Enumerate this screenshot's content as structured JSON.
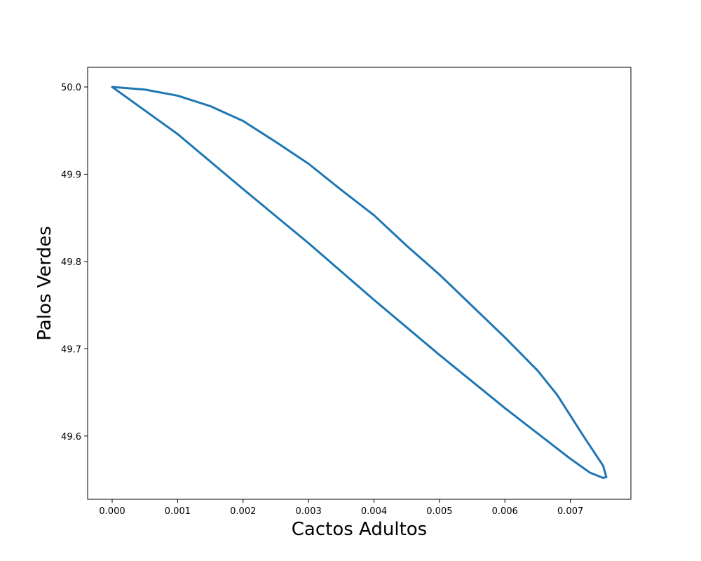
{
  "chart_data": {
    "type": "line",
    "title": "",
    "xlabel": "Cactos Adultos",
    "ylabel": "Palos Verdes",
    "xlim": [
      -0.000375,
      0.007925
    ],
    "ylim": [
      49.5275,
      50.0225
    ],
    "xticks": [
      0.0,
      0.001,
      0.002,
      0.003,
      0.004,
      0.005,
      0.006,
      0.007
    ],
    "xtick_labels": [
      "0.000",
      "0.001",
      "0.002",
      "0.003",
      "0.004",
      "0.005",
      "0.006",
      "0.007"
    ],
    "yticks": [
      49.6,
      49.7,
      49.8,
      49.9,
      50.0
    ],
    "ytick_labels": [
      "49.6",
      "49.7",
      "49.8",
      "49.9",
      "50.0"
    ],
    "grid": false,
    "legend": "none",
    "color": "#1f77b4",
    "series": [
      {
        "points": [
          [
            0.0,
            50.0
          ],
          [
            0.001,
            49.946
          ],
          [
            0.002,
            49.883
          ],
          [
            0.003,
            49.821
          ],
          [
            0.004,
            49.756
          ],
          [
            0.005,
            49.693
          ],
          [
            0.006,
            49.632
          ],
          [
            0.007,
            49.574
          ],
          [
            0.0073,
            49.558
          ],
          [
            0.0075,
            49.552
          ],
          [
            0.00755,
            49.553
          ],
          [
            0.0075,
            49.566
          ],
          [
            0.0072,
            49.6
          ],
          [
            0.0068,
            49.647
          ],
          [
            0.0065,
            49.675
          ],
          [
            0.006,
            49.713
          ],
          [
            0.0055,
            49.749
          ],
          [
            0.005,
            49.785
          ],
          [
            0.0045,
            49.818
          ],
          [
            0.004,
            49.853
          ],
          [
            0.0035,
            49.882
          ],
          [
            0.003,
            49.912
          ],
          [
            0.0025,
            49.937
          ],
          [
            0.002,
            49.961
          ],
          [
            0.0015,
            49.978
          ],
          [
            0.001,
            49.99
          ],
          [
            0.0005,
            49.997
          ],
          [
            0.0,
            50.0
          ]
        ]
      }
    ]
  }
}
